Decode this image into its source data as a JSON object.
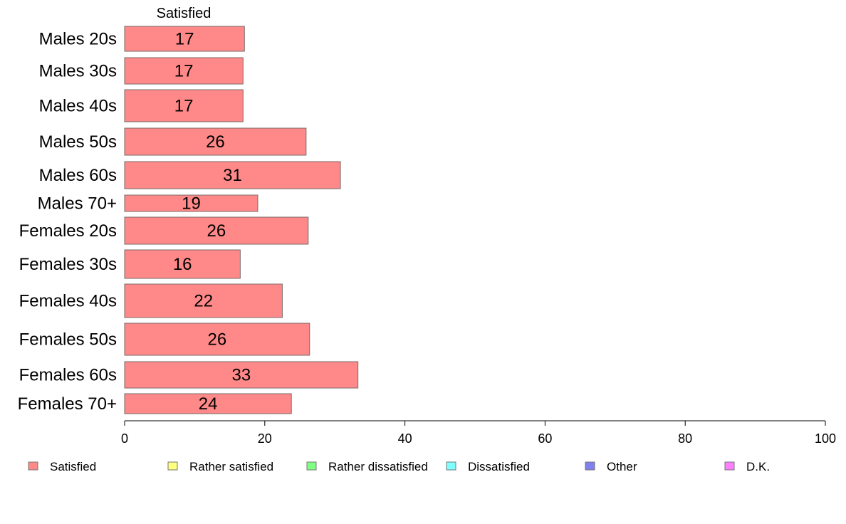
{
  "chart_data": {
    "type": "bar",
    "orientation": "horizontal",
    "column_header": "Satisfied",
    "categories": [
      "Males 20s",
      "Males 30s",
      "Males 40s",
      "Males 50s",
      "Males 60s",
      "Males 70+",
      "Females 20s",
      "Females 30s",
      "Females 40s",
      "Females 50s",
      "Females 60s",
      "Females 70+"
    ],
    "series": [
      {
        "name": "Satisfied",
        "color": "#ff8888",
        "values": [
          17,
          17,
          17,
          26,
          31,
          19,
          26,
          16,
          22,
          26,
          33,
          24
        ]
      }
    ],
    "bar_values": [
      17.1,
      16.9,
      16.9,
      25.9,
      30.8,
      19.0,
      26.2,
      16.5,
      22.5,
      26.4,
      33.3,
      23.8
    ],
    "xlim": [
      0,
      100
    ],
    "xticks": [
      0,
      20,
      40,
      60,
      80,
      100
    ],
    "grid": false,
    "legend": {
      "position": "bottom",
      "entries": [
        {
          "label": "Satisfied",
          "color": "#ff8888"
        },
        {
          "label": "Rather satisfied",
          "color": "#ffff80"
        },
        {
          "label": "Rather dissatisfied",
          "color": "#80ff80"
        },
        {
          "label": "Dissatisfied",
          "color": "#80ffff"
        },
        {
          "label": "Other",
          "color": "#8080ee"
        },
        {
          "label": "D.K.",
          "color": "#ff80ff"
        }
      ]
    }
  }
}
